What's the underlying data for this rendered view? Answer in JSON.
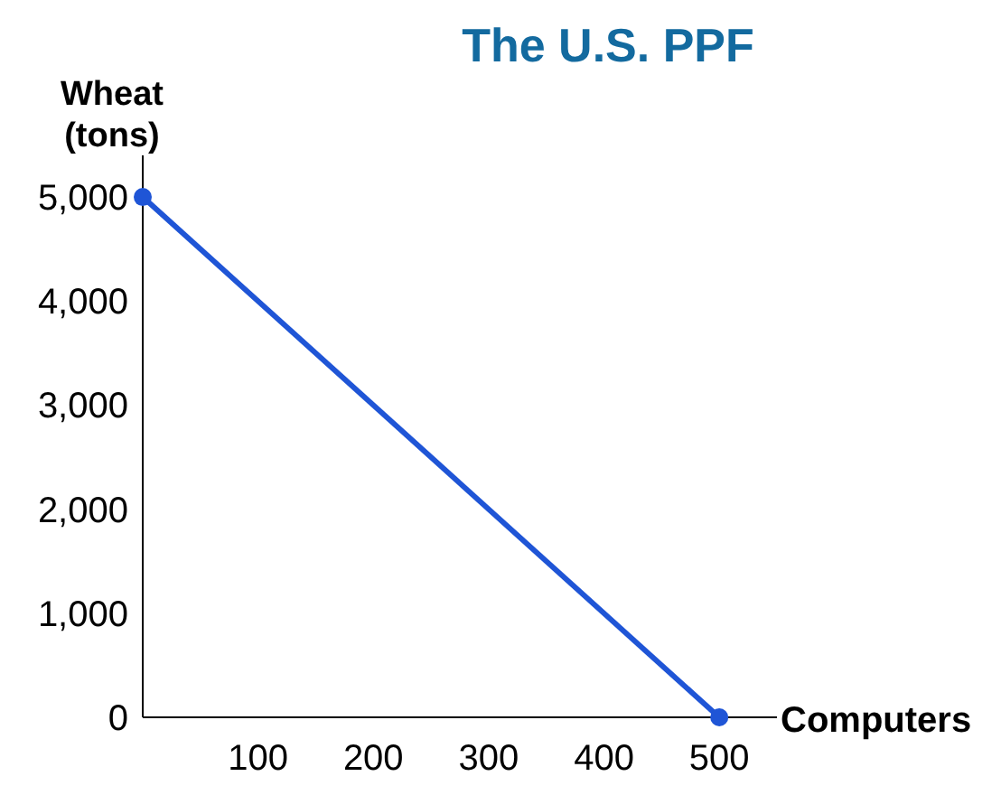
{
  "chart_data": {
    "type": "line",
    "title": "The U.S. PPF",
    "xlabel": "Computers",
    "ylabel": "Wheat\n(tons)",
    "x": [
      0,
      500
    ],
    "series": [
      {
        "color": "#1f55d6",
        "values": [
          5000,
          0
        ]
      }
    ],
    "xlim": [
      0,
      550
    ],
    "ylim": [
      0,
      5400
    ],
    "xticks": [
      100,
      200,
      300,
      400,
      500
    ],
    "yticks": [
      {
        "value": 0,
        "label": "0"
      },
      {
        "value": 1000,
        "label": "1,000"
      },
      {
        "value": 2000,
        "label": "2,000"
      },
      {
        "value": 3000,
        "label": "3,000"
      },
      {
        "value": 4000,
        "label": "4,000"
      },
      {
        "value": 5000,
        "label": "5,000"
      }
    ],
    "marker": "circle",
    "line_style": "solid",
    "grid": false
  }
}
